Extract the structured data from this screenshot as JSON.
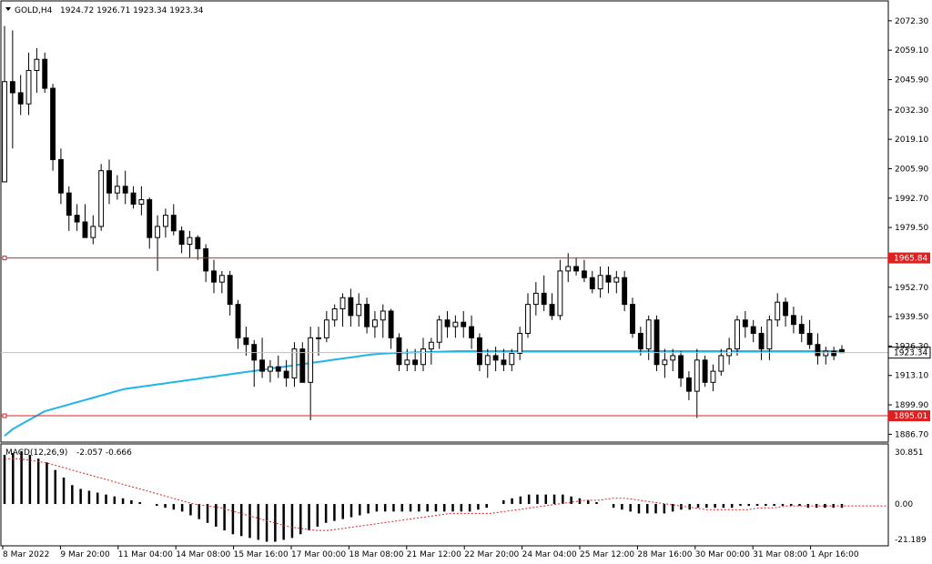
{
  "header": {
    "symbol": "GOLD,H4",
    "ohlc": "1924.72 1926.71 1923.34 1923.34"
  },
  "macd_header": {
    "label": "MACD(12,26,9)",
    "values": "-2.057 -0.666"
  },
  "colors": {
    "ma": "#1fb5e8",
    "level": "#e02020",
    "signal": "#e02020",
    "bid": "#c0c0c0",
    "candle": "#000000"
  },
  "chart_data": {
    "type": "candlestick",
    "price_axis": {
      "ticks": [
        "2072.30",
        "2059.10",
        "2045.90",
        "2032.30",
        "2019.10",
        "2005.90",
        "1992.70",
        "1979.50",
        "1952.70",
        "1939.50",
        "1926.30",
        "1913.10",
        "1899.90",
        "1886.70"
      ],
      "range": [
        1884,
        2080
      ]
    },
    "levels": [
      {
        "value": 1965.84,
        "label": "1965.84"
      },
      {
        "value": 1895.01,
        "label": "1895.01"
      }
    ],
    "current_price": {
      "value": 1923.34,
      "label": "1923.34"
    },
    "time_labels": [
      "8 Mar 2022",
      "9 Mar 20:00",
      "11 Mar 04:00",
      "14 Mar 08:00",
      "15 Mar 16:00",
      "17 Mar 00:00",
      "18 Mar 08:00",
      "21 Mar 12:00",
      "22 Mar 20:00",
      "24 Mar 04:00",
      "25 Mar 12:00",
      "28 Mar 16:00",
      "30 Mar 00:00",
      "31 Mar 08:00",
      "1 Apr 16:00"
    ],
    "candles_ohlc": [
      [
        2000,
        2070,
        2030,
        2045
      ],
      [
        2045,
        2068,
        2015,
        2040
      ],
      [
        2040,
        2048,
        2030,
        2035
      ],
      [
        2035,
        2058,
        2030,
        2050
      ],
      [
        2050,
        2060,
        2040,
        2055
      ],
      [
        2055,
        2058,
        2040,
        2042
      ],
      [
        2042,
        2044,
        2005,
        2010
      ],
      [
        2010,
        2015,
        1990,
        1995
      ],
      [
        1995,
        1998,
        1978,
        1985
      ],
      [
        1985,
        1990,
        1978,
        1982
      ],
      [
        1982,
        1990,
        1975,
        1975
      ],
      [
        1975,
        1985,
        1972,
        1980
      ],
      [
        1980,
        2008,
        1978,
        2005
      ],
      [
        2005,
        2010,
        1990,
        1995
      ],
      [
        1995,
        2003,
        1992,
        1998
      ],
      [
        1998,
        2005,
        1990,
        1995
      ],
      [
        1995,
        1998,
        1988,
        1990
      ],
      [
        1990,
        1998,
        1985,
        1992
      ],
      [
        1992,
        1993,
        1970,
        1975
      ],
      [
        1975,
        1985,
        1960,
        1980
      ],
      [
        1980,
        1988,
        1975,
        1985
      ],
      [
        1985,
        1990,
        1976,
        1978
      ],
      [
        1978,
        1980,
        1968,
        1972
      ],
      [
        1972,
        1978,
        1966,
        1975
      ],
      [
        1975,
        1976,
        1965,
        1970
      ],
      [
        1970,
        1972,
        1955,
        1960
      ],
      [
        1960,
        1965,
        1950,
        1955
      ],
      [
        1955,
        1960,
        1950,
        1958
      ],
      [
        1958,
        1960,
        1940,
        1945
      ],
      [
        1945,
        1947,
        1925,
        1930
      ],
      [
        1930,
        1935,
        1922,
        1927
      ],
      [
        1927,
        1929,
        1908,
        1920
      ],
      [
        1920,
        1930,
        1912,
        1915
      ],
      [
        1915,
        1920,
        1910,
        1917
      ],
      [
        1917,
        1922,
        1912,
        1915
      ],
      [
        1915,
        1920,
        1908,
        1912
      ],
      [
        1912,
        1928,
        1908,
        1925
      ],
      [
        1925,
        1928,
        1910,
        1910
      ],
      [
        1910,
        1935,
        1893,
        1930
      ],
      [
        1930,
        1935,
        1922,
        1930
      ],
      [
        1930,
        1942,
        1928,
        1938
      ],
      [
        1938,
        1945,
        1935,
        1943
      ],
      [
        1943,
        1950,
        1935,
        1948
      ],
      [
        1948,
        1952,
        1935,
        1940
      ],
      [
        1940,
        1950,
        1935,
        1945
      ],
      [
        1945,
        1948,
        1932,
        1935
      ],
      [
        1935,
        1942,
        1930,
        1938
      ],
      [
        1938,
        1945,
        1930,
        1942
      ],
      [
        1942,
        1943,
        1925,
        1930
      ],
      [
        1930,
        1932,
        1915,
        1918
      ],
      [
        1918,
        1925,
        1915,
        1920
      ],
      [
        1920,
        1925,
        1915,
        1918
      ],
      [
        1918,
        1930,
        1915,
        1925
      ],
      [
        1925,
        1930,
        1918,
        1928
      ],
      [
        1928,
        1940,
        1925,
        1938
      ],
      [
        1938,
        1942,
        1930,
        1935
      ],
      [
        1935,
        1940,
        1930,
        1937
      ],
      [
        1937,
        1942,
        1930,
        1935
      ],
      [
        1935,
        1940,
        1925,
        1930
      ],
      [
        1930,
        1932,
        1915,
        1918
      ],
      [
        1918,
        1925,
        1912,
        1922
      ],
      [
        1922,
        1926,
        1915,
        1920
      ],
      [
        1920,
        1925,
        1915,
        1918
      ],
      [
        1918,
        1925,
        1915,
        1923
      ],
      [
        1923,
        1935,
        1920,
        1932
      ],
      [
        1932,
        1950,
        1930,
        1945
      ],
      [
        1945,
        1955,
        1940,
        1950
      ],
      [
        1950,
        1958,
        1942,
        1945
      ],
      [
        1945,
        1950,
        1938,
        1940
      ],
      [
        1940,
        1965,
        1938,
        1960
      ],
      [
        1960,
        1968,
        1955,
        1962
      ],
      [
        1962,
        1966,
        1958,
        1960
      ],
      [
        1960,
        1965,
        1955,
        1957
      ],
      [
        1957,
        1960,
        1950,
        1952
      ],
      [
        1952,
        1962,
        1948,
        1958
      ],
      [
        1958,
        1962,
        1950,
        1955
      ],
      [
        1955,
        1960,
        1950,
        1957
      ],
      [
        1957,
        1960,
        1942,
        1945
      ],
      [
        1945,
        1948,
        1930,
        1932
      ],
      [
        1932,
        1935,
        1922,
        1925
      ],
      [
        1925,
        1940,
        1920,
        1938
      ],
      [
        1938,
        1940,
        1915,
        1918
      ],
      [
        1918,
        1925,
        1912,
        1920
      ],
      [
        1920,
        1925,
        1915,
        1922
      ],
      [
        1922,
        1924,
        1908,
        1912
      ],
      [
        1912,
        1915,
        1902,
        1906
      ],
      [
        1906,
        1925,
        1894,
        1920
      ],
      [
        1920,
        1922,
        1908,
        1910
      ],
      [
        1910,
        1918,
        1906,
        1915
      ],
      [
        1915,
        1925,
        1913,
        1922
      ],
      [
        1922,
        1930,
        1918,
        1925
      ],
      [
        1925,
        1940,
        1922,
        1938
      ],
      [
        1938,
        1942,
        1930,
        1935
      ],
      [
        1935,
        1938,
        1928,
        1932
      ],
      [
        1932,
        1935,
        1920,
        1925
      ],
      [
        1925,
        1940,
        1920,
        1938
      ],
      [
        1938,
        1950,
        1935,
        1946
      ],
      [
        1946,
        1948,
        1935,
        1940
      ],
      [
        1940,
        1944,
        1932,
        1936
      ],
      [
        1936,
        1940,
        1928,
        1932
      ],
      [
        1932,
        1938,
        1925,
        1927
      ],
      [
        1927,
        1932,
        1918,
        1922
      ],
      [
        1922,
        1926,
        1918,
        1924
      ],
      [
        1924,
        1926,
        1920,
        1922
      ],
      [
        1924.72,
        1926.71,
        1923.34,
        1923.34
      ]
    ],
    "ma_values": [
      1886,
      1889,
      1891,
      1893,
      1895,
      1897,
      1898,
      1899,
      1900,
      1901,
      1902,
      1903,
      1904,
      1905,
      1906,
      1907,
      1907.5,
      1908,
      1908.5,
      1909,
      1909.5,
      1910,
      1910.5,
      1911,
      1911.5,
      1912,
      1912.5,
      1913,
      1913.5,
      1914,
      1914.5,
      1915,
      1915.5,
      1916,
      1916.5,
      1917,
      1917.5,
      1918,
      1918.5,
      1919,
      1919.5,
      1920,
      1920.5,
      1921,
      1921.5,
      1922,
      1922.5,
      1922.8,
      1923,
      1923.2,
      1923.3,
      1923.4,
      1923.5,
      1923.6,
      1923.7,
      1923.8,
      1923.9,
      1924,
      1924,
      1924,
      1924,
      1924,
      1924,
      1924,
      1924,
      1924,
      1924,
      1924,
      1924,
      1924,
      1924,
      1924,
      1924,
      1924,
      1924,
      1924,
      1924,
      1924,
      1924,
      1924,
      1924,
      1924,
      1924,
      1924,
      1924,
      1924,
      1924,
      1924,
      1924,
      1924,
      1924,
      1924,
      1924,
      1924,
      1924,
      1924,
      1924,
      1924,
      1924,
      1924,
      1924,
      1924,
      1924,
      1924,
      1924,
      1924
    ],
    "macd": {
      "axis_ticks": [
        "30.851",
        "0.00",
        "-21.189"
      ],
      "range": [
        -21.189,
        30.851
      ],
      "hist": [
        26,
        27,
        28,
        26,
        24,
        22,
        18,
        14,
        10,
        8,
        7,
        6,
        5,
        4,
        3,
        2,
        1,
        0,
        -1,
        -2,
        -3,
        -4,
        -6,
        -8,
        -10,
        -12,
        -14,
        -16,
        -17,
        -18,
        -19,
        -20,
        -20,
        -19,
        -18,
        -16,
        -14,
        -12,
        -10,
        -9,
        -8,
        -7,
        -6,
        -5,
        -4,
        -4,
        -4,
        -4,
        -4,
        -4,
        -4,
        -4,
        -4,
        -4,
        -4,
        -4,
        -3,
        -2,
        0,
        2,
        3,
        4,
        5,
        5,
        5,
        5,
        5,
        4,
        3,
        2,
        1,
        0,
        -2,
        -3,
        -4,
        -5,
        -5,
        -5,
        -5,
        -4,
        -3,
        -3,
        -2,
        -2,
        -2,
        -2,
        -2,
        -1,
        -1,
        -1,
        -1,
        -1,
        -1,
        -1,
        -1,
        -2,
        -2,
        -2,
        -2,
        -2
      ],
      "signal": [
        24,
        24,
        23,
        22,
        20,
        18,
        16,
        14,
        12,
        10,
        8,
        6,
        4,
        2,
        0,
        -1,
        -2,
        -4,
        -6,
        -8,
        -10,
        -12,
        -13,
        -14,
        -14,
        -13,
        -12,
        -11,
        -10,
        -9,
        -8,
        -7,
        -6,
        -5,
        -5,
        -5,
        -5,
        -4,
        -3,
        -2,
        -1,
        0,
        1,
        2,
        2,
        3,
        3,
        2,
        1,
        0,
        -1,
        -2,
        -3,
        -3,
        -3,
        -3,
        -2,
        -2,
        -1,
        -1,
        -1,
        -1,
        -1
      ]
    }
  }
}
